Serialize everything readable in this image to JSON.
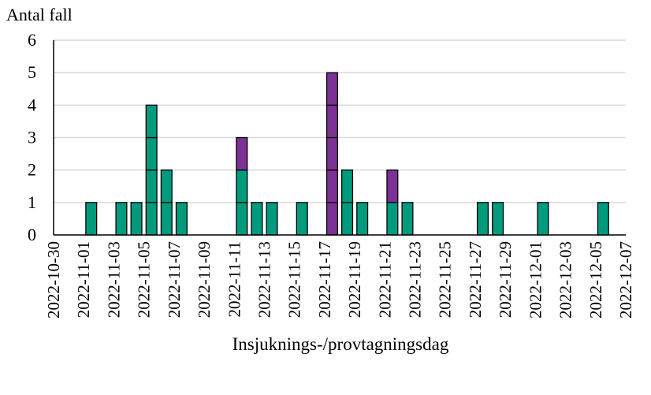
{
  "chart_data": {
    "type": "bar",
    "stacked": true,
    "stack_mode": "unit-boxes",
    "ylabel": "Antal fall",
    "xlabel": "Insjuknings-/provtagningsdag",
    "ylim": [
      0,
      6
    ],
    "yticks": [
      0,
      1,
      2,
      3,
      4,
      5,
      6
    ],
    "grid": "horizontal",
    "x_range": [
      "2022-10-30",
      "2022-12-07"
    ],
    "x_tick_labels": [
      "2022-10-30",
      "2022-11-01",
      "2022-11-03",
      "2022-11-05",
      "2022-11-07",
      "2022-11-09",
      "2022-11-11",
      "2022-11-13",
      "2022-11-15",
      "2022-11-17",
      "2022-11-19",
      "2022-11-21",
      "2022-11-23",
      "2022-11-25",
      "2022-11-27",
      "2022-11-29",
      "2022-12-01",
      "2022-12-03",
      "2022-12-05",
      "2022-12-07"
    ],
    "series": [
      {
        "color": "#009b7d",
        "points": [
          {
            "x": "2022-11-01",
            "y": 1
          },
          {
            "x": "2022-11-03",
            "y": 1
          },
          {
            "x": "2022-11-04",
            "y": 1
          },
          {
            "x": "2022-11-05",
            "y": 4
          },
          {
            "x": "2022-11-06",
            "y": 2
          },
          {
            "x": "2022-11-07",
            "y": 1
          },
          {
            "x": "2022-11-11",
            "y": 2
          },
          {
            "x": "2022-11-12",
            "y": 1
          },
          {
            "x": "2022-11-13",
            "y": 1
          },
          {
            "x": "2022-11-15",
            "y": 1
          },
          {
            "x": "2022-11-18",
            "y": 2
          },
          {
            "x": "2022-11-19",
            "y": 1
          },
          {
            "x": "2022-11-21",
            "y": 1
          },
          {
            "x": "2022-11-22",
            "y": 1
          },
          {
            "x": "2022-11-27",
            "y": 1
          },
          {
            "x": "2022-11-28",
            "y": 1
          },
          {
            "x": "2022-12-01",
            "y": 1
          },
          {
            "x": "2022-12-05",
            "y": 1
          }
        ]
      },
      {
        "color": "#7b3294",
        "points": [
          {
            "x": "2022-11-11",
            "y": 1
          },
          {
            "x": "2022-11-17",
            "y": 5
          },
          {
            "x": "2022-11-21",
            "y": 1
          }
        ]
      }
    ]
  }
}
